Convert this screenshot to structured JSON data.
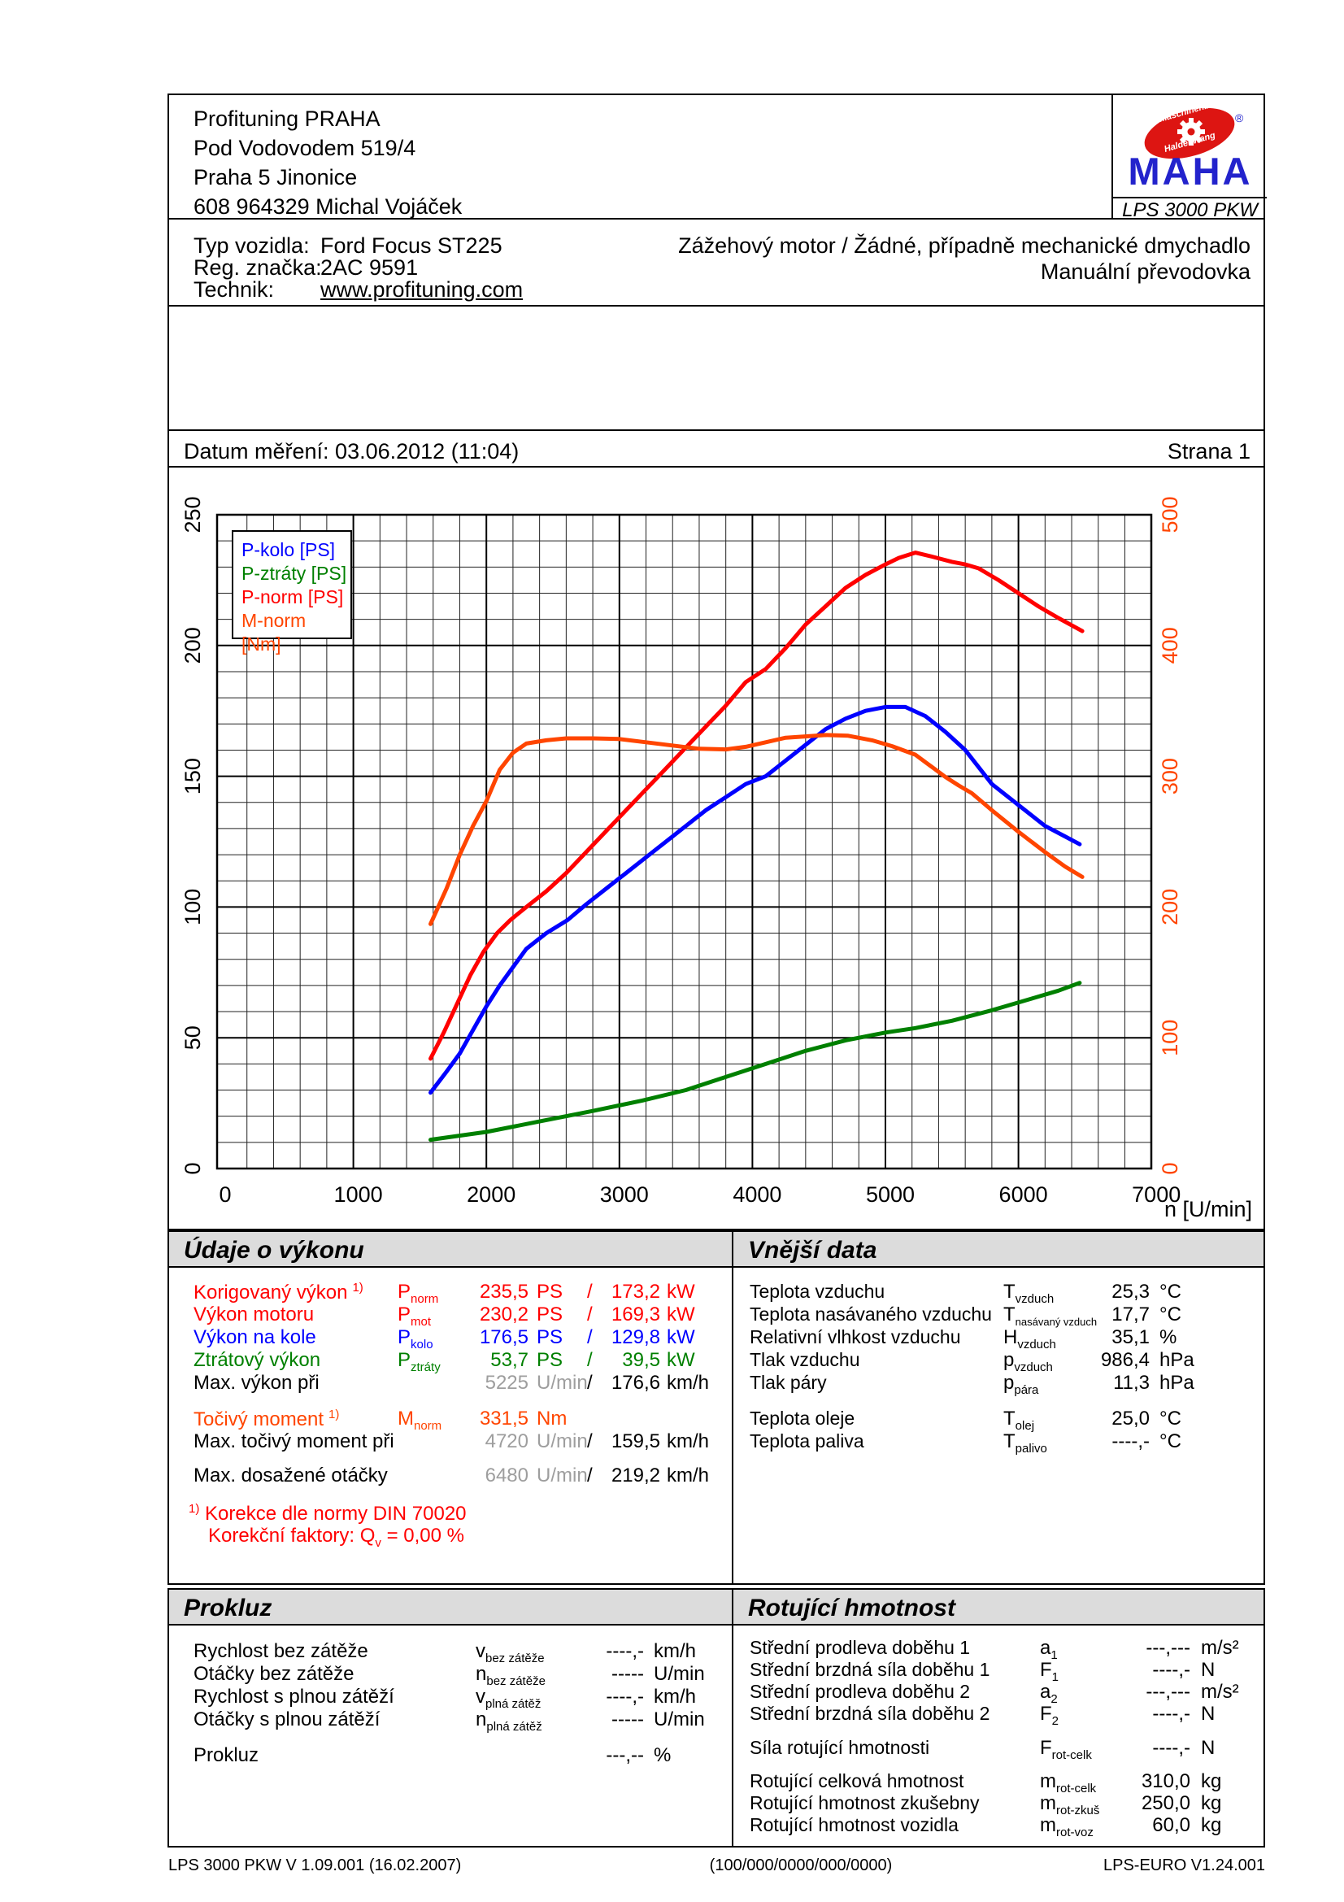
{
  "header": {
    "company_lines": [
      "Profituning PRAHA",
      "Pod Vodovodem 519/4",
      "Praha 5 Jinonice",
      "608 964329 Michal Vojáček"
    ],
    "logo": {
      "arc_top": "Maschinenbau",
      "arc_bottom": "Haldenwang",
      "registered": "®",
      "brand": "MAHA",
      "model": "LPS 3000 PKW",
      "red": "#dd1512",
      "blue": "#2323cc"
    }
  },
  "vehicle": {
    "rows": [
      {
        "label": "Typ vozidla:",
        "value": "Ford Focus ST225"
      },
      {
        "label": "Reg. značka:",
        "value": "2AC 9591"
      },
      {
        "label": "Technik:",
        "value": "www.profituning.com"
      }
    ],
    "engine_line1": "Zážehový motor / Žádné, případně mechanické dmychadlo",
    "engine_line2": "Manuální převodovka"
  },
  "measurement": {
    "date_line": "Datum měření: 03.06.2012 (11:04)",
    "page_label": "Strana 1"
  },
  "chart_data": {
    "type": "line",
    "x_axis": {
      "label": "n [U/min]",
      "min": 0,
      "max": 7000,
      "major": 1000,
      "minor": 200,
      "tick_labels": [
        "0",
        "1000",
        "2000",
        "3000",
        "4000",
        "5000",
        "6000",
        "7000"
      ]
    },
    "y_left": {
      "min": 0,
      "max": 250,
      "major": 50,
      "minor": 10,
      "tick_labels": [
        "0",
        "50",
        "100",
        "150",
        "200",
        "250"
      ],
      "color": "#000000"
    },
    "y_right": {
      "min": 0,
      "max": 500,
      "major": 100,
      "minor": 20,
      "tick_labels": [
        "0",
        "100",
        "200",
        "300",
        "400",
        "500"
      ],
      "color": "#ff4500"
    },
    "grid": true,
    "legend_position": "top-left",
    "series": [
      {
        "name": "P-kolo [PS]",
        "color": "#0000ff",
        "axis": "left",
        "points": [
          [
            1580,
            29
          ],
          [
            1700,
            37
          ],
          [
            1800,
            44
          ],
          [
            1900,
            53
          ],
          [
            2000,
            62
          ],
          [
            2100,
            70
          ],
          [
            2200,
            77
          ],
          [
            2300,
            84
          ],
          [
            2450,
            90
          ],
          [
            2610,
            95
          ],
          [
            2750,
            101
          ],
          [
            2900,
            107
          ],
          [
            3050,
            113
          ],
          [
            3200,
            119
          ],
          [
            3350,
            125
          ],
          [
            3500,
            131
          ],
          [
            3650,
            137
          ],
          [
            3800,
            142
          ],
          [
            3950,
            147
          ],
          [
            4100,
            150
          ],
          [
            4250,
            156
          ],
          [
            4400,
            162
          ],
          [
            4550,
            168
          ],
          [
            4700,
            172
          ],
          [
            4850,
            175
          ],
          [
            5000,
            176.5
          ],
          [
            5150,
            176.5
          ],
          [
            5300,
            173
          ],
          [
            5450,
            167
          ],
          [
            5600,
            160
          ],
          [
            5800,
            147
          ],
          [
            6000,
            139
          ],
          [
            6200,
            131
          ],
          [
            6350,
            127
          ],
          [
            6460,
            124
          ]
        ]
      },
      {
        "name": "P-ztráty [PS]",
        "color": "#008000",
        "axis": "left",
        "points": [
          [
            1580,
            11
          ],
          [
            2000,
            14
          ],
          [
            2400,
            18
          ],
          [
            2800,
            22
          ],
          [
            3172,
            26
          ],
          [
            3500,
            30
          ],
          [
            3800,
            35
          ],
          [
            4100,
            40
          ],
          [
            4400,
            45
          ],
          [
            4700,
            49
          ],
          [
            5000,
            52
          ],
          [
            5225,
            53.7
          ],
          [
            5500,
            56.5
          ],
          [
            5800,
            60.5
          ],
          [
            6100,
            65
          ],
          [
            6300,
            68
          ],
          [
            6460,
            71
          ]
        ]
      },
      {
        "name": "P-norm [PS]",
        "color": "#ff0000",
        "axis": "left",
        "points": [
          [
            1580,
            42
          ],
          [
            1680,
            52
          ],
          [
            1780,
            63
          ],
          [
            1880,
            74
          ],
          [
            1980,
            83
          ],
          [
            2080,
            90
          ],
          [
            2180,
            95
          ],
          [
            2300,
            100
          ],
          [
            2450,
            106
          ],
          [
            2600,
            113
          ],
          [
            2750,
            121
          ],
          [
            2900,
            129
          ],
          [
            3050,
            137
          ],
          [
            3200,
            145
          ],
          [
            3350,
            153
          ],
          [
            3500,
            161
          ],
          [
            3650,
            169
          ],
          [
            3800,
            177
          ],
          [
            3950,
            186
          ],
          [
            4100,
            191
          ],
          [
            4250,
            199
          ],
          [
            4400,
            208
          ],
          [
            4550,
            215
          ],
          [
            4700,
            222
          ],
          [
            4850,
            227
          ],
          [
            5000,
            231
          ],
          [
            5100,
            233.5
          ],
          [
            5225,
            235.5
          ],
          [
            5350,
            234
          ],
          [
            5500,
            232
          ],
          [
            5600,
            231
          ],
          [
            5700,
            229.5
          ],
          [
            5850,
            225
          ],
          [
            6000,
            220
          ],
          [
            6150,
            215
          ],
          [
            6300,
            210.5
          ],
          [
            6480,
            205.5
          ]
        ]
      },
      {
        "name": "M-norm [Nm]",
        "color": "#ff4500",
        "axis": "right",
        "points": [
          [
            1580,
            187
          ],
          [
            1700,
            214
          ],
          [
            1800,
            240
          ],
          [
            1900,
            262
          ],
          [
            2000,
            281
          ],
          [
            2100,
            305
          ],
          [
            2200,
            318
          ],
          [
            2300,
            325
          ],
          [
            2450,
            327.5
          ],
          [
            2600,
            329
          ],
          [
            2800,
            329
          ],
          [
            3000,
            328.5
          ],
          [
            3200,
            326
          ],
          [
            3400,
            323.5
          ],
          [
            3600,
            321
          ],
          [
            3800,
            320.5
          ],
          [
            3950,
            322.5
          ],
          [
            4100,
            326
          ],
          [
            4250,
            329.5
          ],
          [
            4400,
            330.5
          ],
          [
            4550,
            331.5
          ],
          [
            4720,
            331
          ],
          [
            4900,
            327.5
          ],
          [
            5050,
            323
          ],
          [
            5225,
            316.5
          ],
          [
            5350,
            307
          ],
          [
            5450,
            299.5
          ],
          [
            5550,
            293
          ],
          [
            5650,
            287
          ],
          [
            5800,
            274
          ],
          [
            6000,
            257.5
          ],
          [
            6200,
            242
          ],
          [
            6350,
            231
          ],
          [
            6480,
            223
          ]
        ]
      }
    ]
  },
  "udaje": {
    "title": "Údaje o výkonu",
    "rows": [
      {
        "label": "Korigovaný výkon",
        "sup": "1)",
        "sym": "P",
        "sub": "norm",
        "v1": "235,5",
        "u1": "PS",
        "sl": "/",
        "v2": "173,2",
        "u2": "kW"
      },
      {
        "label": "Výkon motoru",
        "sym": "P",
        "sub": "mot",
        "v1": "230,2",
        "u1": "PS",
        "sl": "/",
        "v2": "169,3",
        "u2": "kW"
      },
      {
        "label": "Výkon na kole",
        "sym": "P",
        "sub": "kolo",
        "v1": "176,5",
        "u1": "PS",
        "sl": "/",
        "v2": "129,8",
        "u2": "kW"
      },
      {
        "label": "Ztrátový výkon",
        "sym": "P",
        "sub": "ztráty",
        "v1": "53,7",
        "u1": "PS",
        "sl": "/",
        "v2": "39,5",
        "u2": "kW"
      },
      {
        "label": "Max. výkon při",
        "v1": "5225",
        "u1": "U/min",
        "sl": "/",
        "v2": "176,6",
        "u2": "km/h"
      },
      {
        "label": "Točivý moment",
        "sup": "1)",
        "sym": "M",
        "sub": "norm",
        "v1": "331,5",
        "u1": "Nm"
      },
      {
        "label": "Max. točivý moment při",
        "v1": "4720",
        "u1": "U/min",
        "sl": "/",
        "v2": "159,5",
        "u2": "km/h"
      },
      {
        "label": "Max. dosažené otáčky",
        "v1": "6480",
        "u1": "U/min",
        "sl": "/",
        "v2": "219,2",
        "u2": "km/h"
      }
    ],
    "korekce_sup": "1)",
    "korekce_line1": "Korekce dle normy DIN 70020",
    "korekce_line2a": "Korekční faktory: Q",
    "korekce_line2sub": "v",
    "korekce_line2b": "=   0,00 %"
  },
  "vnejsi": {
    "title": "Vnější data",
    "rows": [
      {
        "label": "Teplota vzduchu",
        "sym": "T",
        "sub": "vzduch",
        "v1": "25,3",
        "u1": "°C"
      },
      {
        "label": "Teplota nasávaného vzduchu",
        "sym": "T",
        "sub": "nasávaný vzduch",
        "v1": "17,7",
        "u1": "°C"
      },
      {
        "label": "Relativní vlhkost vzduchu",
        "sym": "H",
        "sub": "vzduch",
        "v1": "35,1",
        "u1": "%"
      },
      {
        "label": "Tlak vzduchu",
        "sym": "p",
        "sub": "vzduch",
        "v1": "986,4",
        "u1": "hPa"
      },
      {
        "label": "Tlak páry",
        "sym": "p",
        "sub": "pára",
        "v1": "11,3",
        "u1": "hPa"
      },
      {
        "label": "Teplota oleje",
        "sym": "T",
        "sub": "olej",
        "v1": "25,0",
        "u1": "°C"
      },
      {
        "label": "Teplota paliva",
        "sym": "T",
        "sub": "palivo",
        "v1": "----,-",
        "u1": "°C"
      }
    ]
  },
  "prokluz": {
    "title": "Prokluz",
    "rows": [
      {
        "label": "Rychlost bez zátěže",
        "sym": "v",
        "sub": "bez zátěže",
        "v1": "----,-",
        "u1": "km/h"
      },
      {
        "label": "Otáčky bez zátěže",
        "sym": "n",
        "sub": "bez zátěže",
        "v1": "-----",
        "u1": "U/min"
      },
      {
        "label": "Rychlost s plnou zátěží",
        "sym": "v",
        "sub": "plná zátěž",
        "v1": "----,-",
        "u1": "km/h"
      },
      {
        "label": "Otáčky s plnou zátěží",
        "sym": "n",
        "sub": "plná zátěž",
        "v1": "-----",
        "u1": "U/min"
      },
      {
        "label": "Prokluz",
        "v1": "---,--",
        "u1": "%"
      }
    ]
  },
  "rotujici": {
    "title": "Rotující hmotnost",
    "rows": [
      {
        "label": "Střední prodleva doběhu 1",
        "sym": "a",
        "sub": "1",
        "v1": "---,---",
        "u1": "m/s²"
      },
      {
        "label": "Střední brzdná síla doběhu 1",
        "sym": "F",
        "sub": "1",
        "v1": "----,-",
        "u1": "N"
      },
      {
        "label": "Střední prodleva doběhu 2",
        "sym": "a",
        "sub": "2",
        "v1": "---,---",
        "u1": "m/s²"
      },
      {
        "label": "Střední brzdná síla doběhu 2",
        "sym": "F",
        "sub": "2",
        "v1": "----,-",
        "u1": "N"
      },
      {
        "label": "Síla rotující hmotnosti",
        "sym": "F",
        "sub": "rot-celk",
        "v1": "----,-",
        "u1": "N"
      },
      {
        "label": "Rotující celková hmotnost",
        "sym": "m",
        "sub": "rot-celk",
        "v1": "310,0",
        "u1": "kg"
      },
      {
        "label": "Rotující hmotnost zkušebny",
        "sym": "m",
        "sub": "rot-zkuš",
        "v1": "250,0",
        "u1": "kg"
      },
      {
        "label": "Rotující hmotnost vozidla",
        "sym": "m",
        "sub": "rot-voz",
        "v1": "60,0",
        "u1": "kg"
      }
    ]
  },
  "footer": {
    "left": "LPS 3000 PKW V 1.09.001 (16.02.2007)",
    "center": "(100/000/0000/000/0000)",
    "right": "LPS-EURO V1.24.001"
  }
}
